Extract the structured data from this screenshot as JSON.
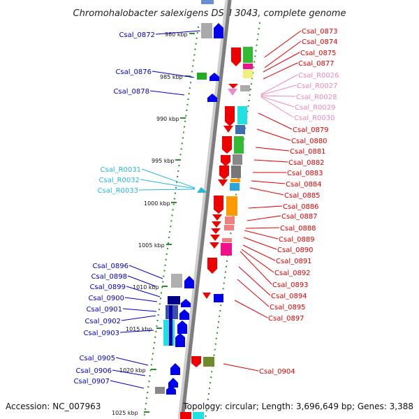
{
  "title": "Chromohalobacter salexigens DSM 3043, complete genome",
  "footer": {
    "accession": "Accession: NC_007963",
    "topology": "Topology: circular; Length: 3,696,649 bp; Genes: 3,388"
  },
  "colors": {
    "backbone": "#8c8c8c",
    "tick": "#2e8b2e",
    "left_labels": "#0000cc",
    "left_rna_labels": "#29b6d8",
    "right_labels": "#e00000",
    "right_rna_labels": "#ee88bb"
  },
  "scale_labels": [
    "980 kbp",
    "985 kbp",
    "990 kbp",
    "995 kbp",
    "1000 kbp",
    "1005 kbp",
    "1010 kbp",
    "1015 kbp",
    "1020 kbp",
    "1025 kbp"
  ],
  "left_labels": [
    {
      "text": "Csal_0872",
      "color": "#0000cc"
    },
    {
      "text": "Csal_0876",
      "color": "#0000cc"
    },
    {
      "text": "Csal_0878",
      "color": "#0000cc"
    },
    {
      "text": "Csal_R0031",
      "color": "#29b6d8"
    },
    {
      "text": "Csal_R0032",
      "color": "#29b6d8"
    },
    {
      "text": "Csal_R0033",
      "color": "#29b6d8"
    },
    {
      "text": "Csal_0896",
      "color": "#0000cc"
    },
    {
      "text": "Csal_0898",
      "color": "#0000cc"
    },
    {
      "text": "Csal_0899",
      "color": "#0000cc"
    },
    {
      "text": "Csal_0900",
      "color": "#0000cc"
    },
    {
      "text": "Csal_0901",
      "color": "#0000cc"
    },
    {
      "text": "Csal_0902",
      "color": "#0000cc"
    },
    {
      "text": "Csal_0903",
      "color": "#0000cc"
    },
    {
      "text": "Csal_0905",
      "color": "#0000cc"
    },
    {
      "text": "Csal_0906",
      "color": "#0000cc"
    },
    {
      "text": "Csal_0907",
      "color": "#0000cc"
    }
  ],
  "right_labels": [
    {
      "text": "Csal_0873",
      "color": "#e00000"
    },
    {
      "text": "Csal_0874",
      "color": "#e00000"
    },
    {
      "text": "Csal_0875",
      "color": "#e00000"
    },
    {
      "text": "Csal_0877",
      "color": "#e00000"
    },
    {
      "text": "Csal_R0026",
      "color": "#ee88bb"
    },
    {
      "text": "Csal_R0027",
      "color": "#ee88bb"
    },
    {
      "text": "Csal_R0028",
      "color": "#ee88bb"
    },
    {
      "text": "Csal_R0029",
      "color": "#ee88bb"
    },
    {
      "text": "Csal_R0030",
      "color": "#ee88bb"
    },
    {
      "text": "Csal_0879",
      "color": "#e00000"
    },
    {
      "text": "Csal_0880",
      "color": "#e00000"
    },
    {
      "text": "Csal_0881",
      "color": "#e00000"
    },
    {
      "text": "Csal_0882",
      "color": "#e00000"
    },
    {
      "text": "Csal_0883",
      "color": "#e00000"
    },
    {
      "text": "Csal_0884",
      "color": "#e00000"
    },
    {
      "text": "Csal_0885",
      "color": "#e00000"
    },
    {
      "text": "Csal_0886",
      "color": "#e00000"
    },
    {
      "text": "Csal_0887",
      "color": "#e00000"
    },
    {
      "text": "Csal_0888",
      "color": "#e00000"
    },
    {
      "text": "Csal_0889",
      "color": "#e00000"
    },
    {
      "text": "Csal_0890",
      "color": "#e00000"
    },
    {
      "text": "Csal_0891",
      "color": "#e00000"
    },
    {
      "text": "Csal_0892",
      "color": "#e00000"
    },
    {
      "text": "Csal_0893",
      "color": "#e00000"
    },
    {
      "text": "Csal_0894",
      "color": "#e00000"
    },
    {
      "text": "Csal_0895",
      "color": "#e00000"
    },
    {
      "text": "Csal_0897",
      "color": "#e00000"
    },
    {
      "text": "Csal_0904",
      "color": "#e00000"
    }
  ]
}
